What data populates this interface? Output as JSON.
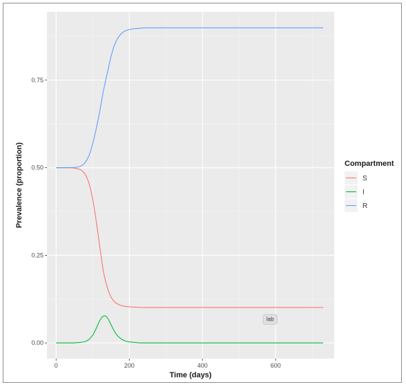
{
  "chart_data": {
    "type": "line",
    "title": "",
    "xlabel": "Time (days)",
    "ylabel": "Prevalence (proportion)",
    "xlim": [
      -25,
      760
    ],
    "ylim": [
      -0.045,
      0.945
    ],
    "x_ticks": [
      0,
      200,
      400,
      600
    ],
    "x_tick_labels": [
      "0",
      "200",
      "400",
      "600"
    ],
    "y_ticks": [
      0,
      0.25,
      0.5,
      0.75
    ],
    "y_tick_labels": [
      "0.00",
      "0.25",
      "0.50",
      "0.75"
    ],
    "grid": true,
    "legend": {
      "title": "Compartment",
      "position": "right"
    },
    "annotation": {
      "text": "lab",
      "x": 585,
      "y": 0.067
    },
    "x": [
      0,
      20,
      40,
      60,
      70,
      80,
      90,
      100,
      110,
      120,
      130,
      140,
      150,
      160,
      170,
      180,
      190,
      200,
      210,
      220,
      230,
      240,
      250,
      270,
      300,
      400,
      500,
      600,
      700,
      730
    ],
    "series": [
      {
        "name": "S",
        "color": "#F8766D",
        "values": [
          0.5,
          0.5,
          0.5,
          0.497,
          0.492,
          0.48,
          0.455,
          0.41,
          0.345,
          0.27,
          0.2,
          0.158,
          0.131,
          0.117,
          0.11,
          0.106,
          0.104,
          0.103,
          0.102,
          0.102,
          0.101,
          0.101,
          0.101,
          0.101,
          0.101,
          0.101,
          0.101,
          0.101,
          0.101,
          0.101
        ]
      },
      {
        "name": "I",
        "color": "#00BA38",
        "values": [
          0.0,
          0.0,
          0.0,
          0.001,
          0.002,
          0.004,
          0.01,
          0.022,
          0.042,
          0.065,
          0.077,
          0.072,
          0.052,
          0.032,
          0.018,
          0.01,
          0.005,
          0.003,
          0.002,
          0.001,
          0.0,
          0.0,
          0.0,
          0.0,
          0.0,
          0.0,
          0.0,
          0.0,
          0.0,
          0.0
        ]
      },
      {
        "name": "R",
        "color": "#619CFF",
        "values": [
          0.5,
          0.5,
          0.5,
          0.502,
          0.506,
          0.516,
          0.535,
          0.568,
          0.613,
          0.665,
          0.723,
          0.77,
          0.817,
          0.851,
          0.872,
          0.884,
          0.891,
          0.894,
          0.896,
          0.897,
          0.898,
          0.899,
          0.899,
          0.899,
          0.899,
          0.899,
          0.899,
          0.899,
          0.899,
          0.899
        ]
      }
    ]
  }
}
